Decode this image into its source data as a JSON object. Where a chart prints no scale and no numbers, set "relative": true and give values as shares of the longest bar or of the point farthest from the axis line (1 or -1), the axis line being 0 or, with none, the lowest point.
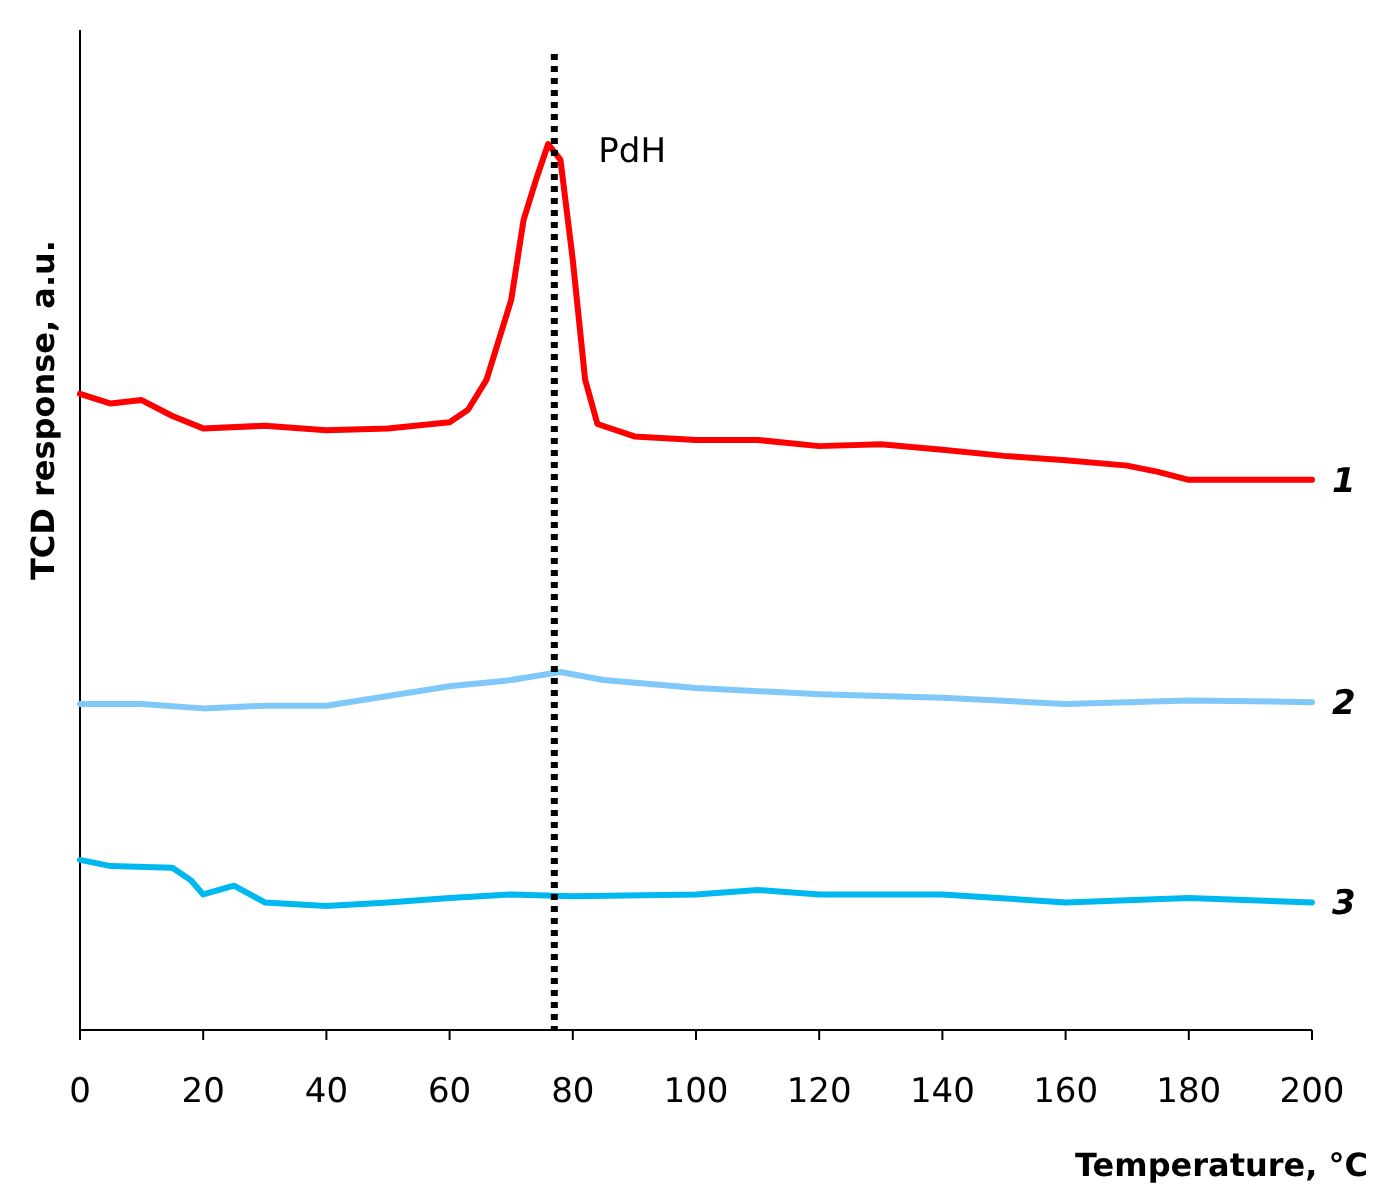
{
  "chart_data": {
    "type": "line",
    "xlabel": "Temperature, °C",
    "ylabel": "TCD response, a.u.",
    "relative": true,
    "xlim": [
      0,
      200
    ],
    "xticks": [
      0,
      20,
      40,
      60,
      80,
      100,
      120,
      140,
      160,
      180,
      200
    ],
    "grid": false,
    "marker": "none",
    "line_style": "solid",
    "ref_lines": [
      {
        "axis": "x",
        "value": 77,
        "label": "PdH",
        "color": "#000000",
        "line_style": "dotted"
      }
    ],
    "series": [
      {
        "name": "1",
        "color": "#ff0000",
        "x": [
          0,
          5,
          10,
          15,
          20,
          30,
          40,
          50,
          60,
          63,
          66,
          70,
          72,
          74,
          76,
          78,
          80,
          82,
          84,
          90,
          100,
          110,
          120,
          130,
          140,
          150,
          160,
          170,
          175,
          180,
          190,
          200
        ],
        "values": [
          0.718,
          0.707,
          0.711,
          0.693,
          0.679,
          0.682,
          0.677,
          0.679,
          0.686,
          0.7,
          0.734,
          0.824,
          0.914,
          0.959,
          1,
          0.982,
          0.869,
          0.734,
          0.684,
          0.67,
          0.666,
          0.666,
          0.659,
          0.661,
          0.655,
          0.648,
          0.643,
          0.637,
          0.63,
          0.621,
          0.621,
          0.621
        ]
      },
      {
        "name": "2",
        "color": "#80c8f8",
        "x": [
          0,
          10,
          20,
          30,
          40,
          50,
          60,
          70,
          78,
          85,
          100,
          120,
          140,
          160,
          180,
          200
        ],
        "values": [
          0.368,
          0.368,
          0.363,
          0.366,
          0.366,
          0.377,
          0.388,
          0.395,
          0.404,
          0.395,
          0.386,
          0.379,
          0.375,
          0.368,
          0.372,
          0.37
        ]
      },
      {
        "name": "3",
        "color": "#00b8f0",
        "x": [
          0,
          5,
          15,
          18,
          20,
          25,
          30,
          40,
          50,
          60,
          70,
          80,
          100,
          110,
          120,
          140,
          160,
          180,
          200
        ],
        "values": [
          0.192,
          0.185,
          0.183,
          0.169,
          0.153,
          0.163,
          0.144,
          0.14,
          0.144,
          0.149,
          0.153,
          0.151,
          0.153,
          0.158,
          0.153,
          0.153,
          0.144,
          0.149,
          0.144
        ]
      }
    ]
  }
}
